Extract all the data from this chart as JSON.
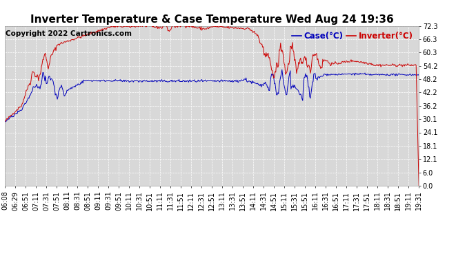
{
  "title": "Inverter Temperature & Case Temperature Wed Aug 24 19:36",
  "copyright": "Copyright 2022 Cartronics.com",
  "legend_case": "Case(°C)",
  "legend_inverter": "Inverter(°C)",
  "yticks": [
    0.0,
    6.0,
    12.1,
    18.1,
    24.1,
    30.1,
    36.2,
    42.2,
    48.2,
    54.2,
    60.3,
    66.3,
    72.3
  ],
  "ylim": [
    0.0,
    72.3
  ],
  "bg_color": "#ffffff",
  "plot_bg_color": "#d8d8d8",
  "grid_color": "#ffffff",
  "case_color": "#0000bb",
  "inverter_color": "#cc0000",
  "title_fontsize": 11,
  "tick_fontsize": 7,
  "copyright_fontsize": 7.5,
  "legend_fontsize": 8.5,
  "x_labels": [
    "06:08",
    "06:29",
    "06:51",
    "07:11",
    "07:31",
    "07:51",
    "08:11",
    "08:31",
    "08:51",
    "09:11",
    "09:31",
    "09:51",
    "10:11",
    "10:31",
    "10:51",
    "11:11",
    "11:31",
    "11:51",
    "12:11",
    "12:31",
    "12:51",
    "13:11",
    "13:31",
    "13:51",
    "14:11",
    "14:31",
    "14:51",
    "15:11",
    "15:31",
    "15:51",
    "16:11",
    "16:31",
    "16:51",
    "17:11",
    "17:31",
    "17:51",
    "18:11",
    "18:31",
    "18:51",
    "19:11",
    "19:31"
  ]
}
